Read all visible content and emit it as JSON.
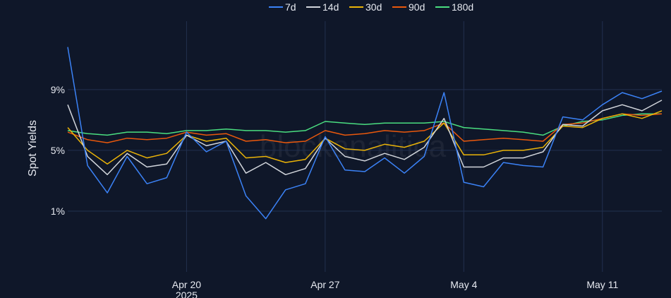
{
  "chart_data": {
    "type": "line",
    "title": "",
    "xlabel": "",
    "ylabel": "Spot Yields",
    "y_ticks": [
      "1%",
      "5%",
      "9%"
    ],
    "y_tick_values": [
      1,
      5,
      9
    ],
    "ylim": [
      -3,
      13.5
    ],
    "x_ticks": [
      {
        "label": "Apr 20",
        "sublabel": "2025",
        "date": "2025-04-20"
      },
      {
        "label": "Apr 27",
        "sublabel": "",
        "date": "2025-04-27"
      },
      {
        "label": "May 4",
        "sublabel": "",
        "date": "2025-05-04"
      },
      {
        "label": "May 11",
        "sublabel": "",
        "date": "2025-05-11"
      }
    ],
    "xlim": [
      "2025-04-14",
      "2025-05-14"
    ],
    "grid": true,
    "legend_position": "top-center",
    "watermark": "blockanalitica",
    "series": [
      {
        "name": "7d",
        "color": "#3b82f6",
        "points": [
          [
            "2025-04-14",
            11.8
          ],
          [
            "2025-04-15",
            4.0
          ],
          [
            "2025-04-16",
            2.2
          ],
          [
            "2025-04-17",
            4.6
          ],
          [
            "2025-04-18",
            2.8
          ],
          [
            "2025-04-19",
            3.2
          ],
          [
            "2025-04-20",
            6.2
          ],
          [
            "2025-04-21",
            4.9
          ],
          [
            "2025-04-22",
            5.6
          ],
          [
            "2025-04-23",
            2.0
          ],
          [
            "2025-04-24",
            0.5
          ],
          [
            "2025-04-25",
            2.4
          ],
          [
            "2025-04-26",
            2.8
          ],
          [
            "2025-04-27",
            5.9
          ],
          [
            "2025-04-28",
            3.7
          ],
          [
            "2025-04-29",
            3.6
          ],
          [
            "2025-04-30",
            4.5
          ],
          [
            "2025-05-01",
            3.5
          ],
          [
            "2025-05-02",
            4.6
          ],
          [
            "2025-05-03",
            8.8
          ],
          [
            "2025-05-04",
            2.9
          ],
          [
            "2025-05-05",
            2.6
          ],
          [
            "2025-05-06",
            4.2
          ],
          [
            "2025-05-07",
            4.0
          ],
          [
            "2025-05-08",
            3.9
          ],
          [
            "2025-05-09",
            7.2
          ],
          [
            "2025-05-10",
            7.0
          ],
          [
            "2025-05-11",
            8.0
          ],
          [
            "2025-05-12",
            8.8
          ],
          [
            "2025-05-13",
            8.4
          ],
          [
            "2025-05-14",
            8.9
          ]
        ]
      },
      {
        "name": "14d",
        "color": "#d1d5db",
        "points": [
          [
            "2025-04-14",
            8.0
          ],
          [
            "2025-04-15",
            4.6
          ],
          [
            "2025-04-16",
            3.4
          ],
          [
            "2025-04-17",
            4.8
          ],
          [
            "2025-04-18",
            3.9
          ],
          [
            "2025-04-19",
            4.1
          ],
          [
            "2025-04-20",
            6.0
          ],
          [
            "2025-04-21",
            5.3
          ],
          [
            "2025-04-22",
            5.6
          ],
          [
            "2025-04-23",
            3.5
          ],
          [
            "2025-04-24",
            4.2
          ],
          [
            "2025-04-25",
            3.4
          ],
          [
            "2025-04-26",
            3.8
          ],
          [
            "2025-04-27",
            5.8
          ],
          [
            "2025-04-28",
            4.6
          ],
          [
            "2025-04-29",
            4.3
          ],
          [
            "2025-04-30",
            4.8
          ],
          [
            "2025-05-01",
            4.4
          ],
          [
            "2025-05-02",
            5.2
          ],
          [
            "2025-05-03",
            7.1
          ],
          [
            "2025-05-04",
            3.9
          ],
          [
            "2025-05-05",
            3.9
          ],
          [
            "2025-05-06",
            4.5
          ],
          [
            "2025-05-07",
            4.5
          ],
          [
            "2025-05-08",
            4.9
          ],
          [
            "2025-05-09",
            6.7
          ],
          [
            "2025-05-10",
            6.6
          ],
          [
            "2025-05-11",
            7.6
          ],
          [
            "2025-05-12",
            8.0
          ],
          [
            "2025-05-13",
            7.6
          ],
          [
            "2025-05-14",
            8.3
          ]
        ]
      },
      {
        "name": "30d",
        "color": "#eab308",
        "points": [
          [
            "2025-04-14",
            6.5
          ],
          [
            "2025-04-15",
            5.0
          ],
          [
            "2025-04-16",
            4.1
          ],
          [
            "2025-04-17",
            5.0
          ],
          [
            "2025-04-18",
            4.5
          ],
          [
            "2025-04-19",
            4.8
          ],
          [
            "2025-04-20",
            6.0
          ],
          [
            "2025-04-21",
            5.6
          ],
          [
            "2025-04-22",
            5.8
          ],
          [
            "2025-04-23",
            4.5
          ],
          [
            "2025-04-24",
            4.6
          ],
          [
            "2025-04-25",
            4.2
          ],
          [
            "2025-04-26",
            4.4
          ],
          [
            "2025-04-27",
            5.8
          ],
          [
            "2025-04-28",
            5.1
          ],
          [
            "2025-04-29",
            5.0
          ],
          [
            "2025-04-30",
            5.4
          ],
          [
            "2025-05-01",
            5.2
          ],
          [
            "2025-05-02",
            5.6
          ],
          [
            "2025-05-03",
            6.8
          ],
          [
            "2025-05-04",
            4.7
          ],
          [
            "2025-05-05",
            4.7
          ],
          [
            "2025-05-06",
            5.0
          ],
          [
            "2025-05-07",
            5.0
          ],
          [
            "2025-05-08",
            5.2
          ],
          [
            "2025-05-09",
            6.6
          ],
          [
            "2025-05-10",
            6.5
          ],
          [
            "2025-05-11",
            7.1
          ],
          [
            "2025-05-12",
            7.4
          ],
          [
            "2025-05-13",
            7.1
          ],
          [
            "2025-05-14",
            7.6
          ]
        ]
      },
      {
        "name": "90d",
        "color": "#ea580c",
        "points": [
          [
            "2025-04-14",
            6.2
          ],
          [
            "2025-04-15",
            5.7
          ],
          [
            "2025-04-16",
            5.5
          ],
          [
            "2025-04-17",
            5.8
          ],
          [
            "2025-04-18",
            5.7
          ],
          [
            "2025-04-19",
            5.8
          ],
          [
            "2025-04-20",
            6.2
          ],
          [
            "2025-04-21",
            6.0
          ],
          [
            "2025-04-22",
            6.1
          ],
          [
            "2025-04-23",
            5.6
          ],
          [
            "2025-04-24",
            5.7
          ],
          [
            "2025-04-25",
            5.5
          ],
          [
            "2025-04-26",
            5.6
          ],
          [
            "2025-04-27",
            6.3
          ],
          [
            "2025-04-28",
            6.0
          ],
          [
            "2025-04-29",
            6.1
          ],
          [
            "2025-04-30",
            6.3
          ],
          [
            "2025-05-01",
            6.2
          ],
          [
            "2025-05-02",
            6.3
          ],
          [
            "2025-05-03",
            6.8
          ],
          [
            "2025-05-04",
            5.6
          ],
          [
            "2025-05-05",
            5.7
          ],
          [
            "2025-05-06",
            5.8
          ],
          [
            "2025-05-07",
            5.7
          ],
          [
            "2025-05-08",
            5.6
          ],
          [
            "2025-05-09",
            6.7
          ],
          [
            "2025-05-10",
            6.8
          ],
          [
            "2025-05-11",
            7.1
          ],
          [
            "2025-05-12",
            7.4
          ],
          [
            "2025-05-13",
            7.3
          ],
          [
            "2025-05-14",
            7.4
          ]
        ]
      },
      {
        "name": "180d",
        "color": "#4ade80",
        "points": [
          [
            "2025-04-14",
            6.3
          ],
          [
            "2025-04-15",
            6.1
          ],
          [
            "2025-04-16",
            6.0
          ],
          [
            "2025-04-17",
            6.2
          ],
          [
            "2025-04-18",
            6.2
          ],
          [
            "2025-04-19",
            6.1
          ],
          [
            "2025-04-20",
            6.3
          ],
          [
            "2025-04-21",
            6.3
          ],
          [
            "2025-04-22",
            6.4
          ],
          [
            "2025-04-23",
            6.3
          ],
          [
            "2025-04-24",
            6.3
          ],
          [
            "2025-04-25",
            6.2
          ],
          [
            "2025-04-26",
            6.3
          ],
          [
            "2025-04-27",
            6.9
          ],
          [
            "2025-04-28",
            6.8
          ],
          [
            "2025-04-29",
            6.7
          ],
          [
            "2025-04-30",
            6.8
          ],
          [
            "2025-05-01",
            6.8
          ],
          [
            "2025-05-02",
            6.8
          ],
          [
            "2025-05-03",
            6.9
          ],
          [
            "2025-05-04",
            6.5
          ],
          [
            "2025-05-05",
            6.4
          ],
          [
            "2025-05-06",
            6.3
          ],
          [
            "2025-05-07",
            6.2
          ],
          [
            "2025-05-08",
            6.0
          ],
          [
            "2025-05-09",
            6.6
          ],
          [
            "2025-05-10",
            6.9
          ],
          [
            "2025-05-11",
            7.0
          ],
          [
            "2025-05-12",
            7.3
          ],
          [
            "2025-05-13",
            7.4
          ],
          [
            "2025-05-14",
            7.4
          ]
        ]
      }
    ]
  }
}
